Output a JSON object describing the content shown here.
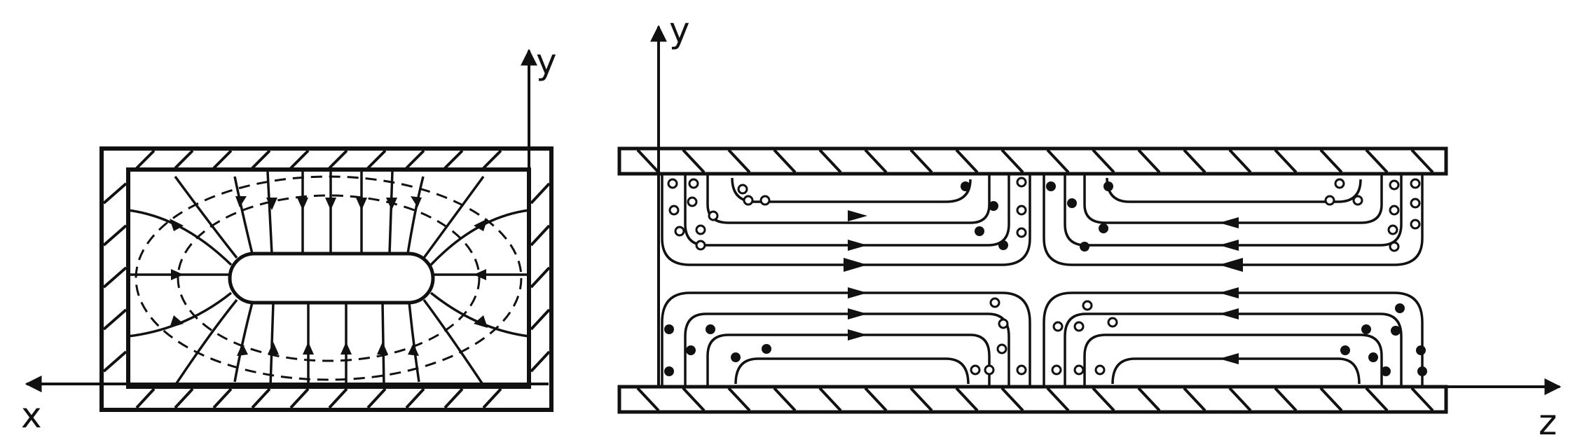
{
  "left_panel": {
    "axis_labels": {
      "x": "x",
      "y": "y"
    }
  },
  "right_panel": {
    "axis_labels": {
      "y": "y",
      "z": "z"
    }
  },
  "colors": {
    "ink": "#111111",
    "background": "#ffffff"
  }
}
